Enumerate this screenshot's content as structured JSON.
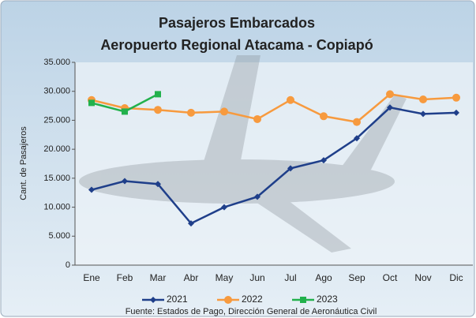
{
  "chart_data": {
    "type": "line",
    "title": "Pasajeros Embarcados",
    "subtitle": "Aeropuerto Regional Atacama - Copiapó",
    "y_label": "Cant. de Pasajeros",
    "source": "Fuente: Estados de Pago, Dirección General de Aeronáutica Civil",
    "categories": [
      "Ene",
      "Feb",
      "Mar",
      "Abr",
      "May",
      "Jun",
      "Jul",
      "Ago",
      "Sep",
      "Oct",
      "Nov",
      "Dic"
    ],
    "series": [
      {
        "name": "2021",
        "color": "#1f3f8a",
        "marker": "diamond",
        "values": [
          13000,
          14500,
          14000,
          7200,
          10000,
          11800,
          16700,
          18100,
          21900,
          27200,
          26100,
          26300
        ]
      },
      {
        "name": "2022",
        "color": "#f79a3e",
        "marker": "circle",
        "values": [
          28500,
          27100,
          26800,
          26300,
          26500,
          25200,
          28500,
          25700,
          24700,
          29500,
          28600,
          28900
        ]
      },
      {
        "name": "2023",
        "color": "#22b14c",
        "marker": "square",
        "values": [
          28000,
          26500,
          29500,
          null,
          null,
          null,
          null,
          null,
          null,
          null,
          null,
          null
        ]
      }
    ],
    "ylim": [
      0,
      35000
    ],
    "yticks": [
      0,
      {
        "value": 5000,
        "label": "5.000"
      },
      {
        "value": 10000,
        "label": "10.000"
      },
      {
        "value": 15000,
        "label": "15.000"
      },
      {
        "value": 20000,
        "label": "20.000"
      },
      {
        "value": 25000,
        "label": "25.000"
      },
      {
        "value": 30000,
        "label": "30.000"
      },
      {
        "value": 35000,
        "label": "35.000"
      }
    ],
    "grid": false,
    "legend": "bottom"
  }
}
